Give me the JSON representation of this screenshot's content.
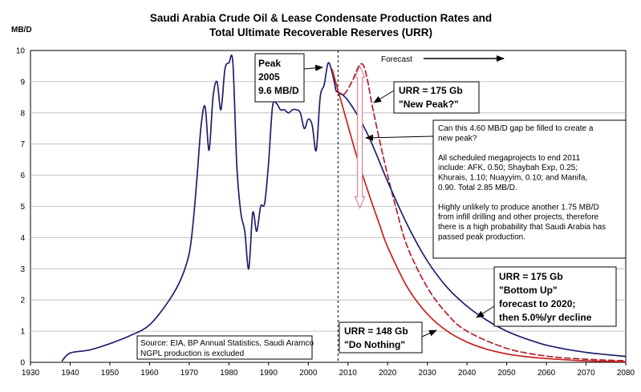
{
  "chart_data": {
    "type": "line",
    "title": "Saudi Arabia Crude Oil & Lease Condensate Production Rates and",
    "subtitle": "Total Ultimate Recoverable Reserves (URR)",
    "ylabel": "MB/D",
    "xlabel": "",
    "xlim": [
      1930,
      2080
    ],
    "ylim": [
      0,
      10
    ],
    "x_ticks": [
      1930,
      1940,
      1950,
      1960,
      1970,
      1980,
      1990,
      2000,
      2010,
      2020,
      2030,
      2040,
      2050,
      2060,
      2070,
      2080
    ],
    "y_ticks": [
      0,
      1,
      2,
      3,
      4,
      5,
      6,
      7,
      8,
      9,
      10
    ],
    "grid": true,
    "legend": "none",
    "series": [
      {
        "key": "historical",
        "color": "#1f1f6e",
        "dash": "solid",
        "x": [
          1938,
          1940,
          1945,
          1950,
          1955,
          1960,
          1965,
          1968,
          1970,
          1971,
          1972,
          1973,
          1974,
          1975,
          1976,
          1977,
          1978,
          1979,
          1980,
          1981,
          1982,
          1983,
          1984,
          1985,
          1986,
          1987,
          1988,
          1989,
          1990,
          1991,
          1992,
          1993,
          1994,
          1995,
          1996,
          1997,
          1998,
          1999,
          2000,
          2001,
          2002,
          2003,
          2004,
          2005,
          2006,
          2007
        ],
        "y": [
          0.05,
          0.3,
          0.4,
          0.6,
          0.85,
          1.2,
          2.0,
          2.7,
          3.5,
          4.5,
          6.0,
          7.6,
          8.2,
          6.8,
          8.5,
          9.0,
          8.1,
          9.4,
          9.6,
          9.6,
          6.3,
          4.8,
          4.2,
          3.0,
          4.8,
          4.2,
          5.0,
          5.1,
          6.4,
          8.2,
          8.3,
          8.1,
          8.1,
          8.0,
          8.1,
          8.1,
          8.0,
          7.5,
          7.8,
          7.6,
          6.8,
          8.5,
          8.9,
          9.6,
          9.3,
          8.7
        ]
      },
      {
        "key": "forecast_175_new_peak",
        "color": "#b0202a",
        "dash": "dashed",
        "x": [
          2007,
          2009,
          2011,
          2012,
          2013,
          2014,
          2015,
          2016,
          2018,
          2020,
          2022,
          2025,
          2030,
          2035,
          2040,
          2050,
          2060,
          2070,
          2080
        ],
        "y": [
          8.7,
          8.6,
          9.0,
          9.3,
          9.55,
          9.5,
          9.0,
          8.3,
          7.1,
          6.0,
          5.0,
          3.7,
          2.4,
          1.55,
          1.0,
          0.45,
          0.2,
          0.1,
          0.05
        ]
      },
      {
        "key": "forecast_175_bottom_up",
        "color": "#1f1f6e",
        "dash": "solid",
        "x": [
          2007,
          2010,
          2015,
          2020,
          2025,
          2030,
          2035,
          2040,
          2045,
          2050,
          2055,
          2060,
          2065,
          2070,
          2075,
          2080
        ],
        "y": [
          8.7,
          8.4,
          7.3,
          5.8,
          4.4,
          3.25,
          2.4,
          1.8,
          1.35,
          1.0,
          0.75,
          0.55,
          0.42,
          0.32,
          0.25,
          0.19
        ]
      },
      {
        "key": "forecast_148_do_nothing",
        "color": "#c82020",
        "dash": "solid",
        "x": [
          2006,
          2008,
          2010,
          2012,
          2015,
          2018,
          2020,
          2025,
          2030,
          2035,
          2040,
          2045,
          2050,
          2055,
          2060,
          2070,
          2080
        ],
        "y": [
          9.4,
          8.5,
          7.6,
          6.7,
          5.5,
          4.4,
          3.7,
          2.4,
          1.55,
          1.0,
          0.65,
          0.42,
          0.27,
          0.18,
          0.12,
          0.05,
          0.02
        ]
      }
    ],
    "forecast_start_x": 2007.5,
    "gap_arrow": {
      "x": 2013,
      "y_top": 9.55,
      "y_bottom": 4.95
    },
    "annotations": {
      "peak": [
        "Peak",
        "2005",
        "9.6 MB/D"
      ],
      "forecast": "Forecast",
      "urr_new_peak": [
        "URR = 175 Gb",
        "\"New Peak?\""
      ],
      "gap_note": [
        "Can this 4.60 MB/D gap be filled to create a",
        "new peak?",
        "",
        "All scheduled megaprojects to end 2011",
        "include: AFK, 0.50; Shaybah Exp, 0.25;",
        "Khurais, 1.10; Nuayyim, 0.10; and Manifa,",
        "0.90.  Total 2.85 MB/D.",
        "",
        "Highly unlikely to produce another 1.75 MB/D",
        "from infill drilling and other projects, therefore",
        "there is a high probability that Saudi Arabia has",
        "passed peak production."
      ],
      "urr_bottom_up": [
        "URR = 175 Gb",
        "\"Bottom Up\"",
        "forecast to 2020;",
        "then 5.0%/yr decline"
      ],
      "urr_do_nothing": [
        "URR = 148 Gb",
        "\"Do Nothing\""
      ],
      "source": [
        "Source: EIA, BP Annual Statistics, Saudi Aramco",
        "NGPL production is excluded"
      ]
    }
  }
}
